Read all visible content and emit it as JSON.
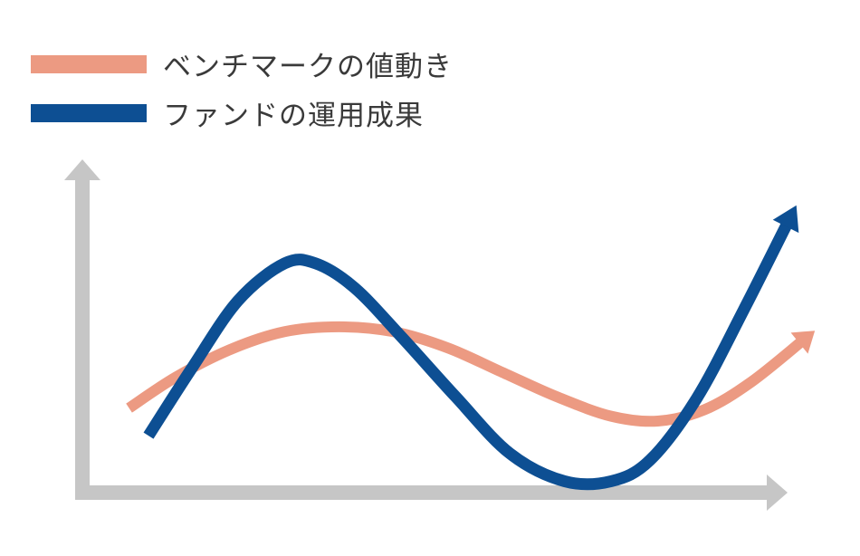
{
  "colors": {
    "axis": "#c6c6c6",
    "benchmark": "#ec9a82",
    "fund": "#0d4f93"
  },
  "chart_data": {
    "type": "line",
    "title": "",
    "xlabel": "",
    "ylabel": "",
    "grid": false,
    "legend_position": "top-left",
    "xlim": [
      0,
      10
    ],
    "ylim": [
      0,
      10
    ],
    "series": [
      {
        "name": "ベンチマークの値動き",
        "color": "#ec9a82",
        "x": [
          0.6,
          1.2,
          1.9,
          2.6,
          3.3,
          4.0,
          4.7,
          5.4,
          6.1,
          6.8,
          7.4,
          8.0,
          8.6,
          9.3
        ],
        "y": [
          2.6,
          3.55,
          4.4,
          4.95,
          5.1,
          4.95,
          4.45,
          3.7,
          2.95,
          2.35,
          2.2,
          2.55,
          3.4,
          4.75
        ],
        "arrow_end": true
      },
      {
        "name": "ファンドの運用成果",
        "color": "#0d4f93",
        "x": [
          0.85,
          1.4,
          2.0,
          2.6,
          3.0,
          3.5,
          4.1,
          4.8,
          5.5,
          6.2,
          6.8,
          7.3,
          7.9,
          8.5,
          9.1
        ],
        "y": [
          1.75,
          3.8,
          5.9,
          7.05,
          7.05,
          6.3,
          4.8,
          2.95,
          1.2,
          0.35,
          0.35,
          1.0,
          2.9,
          5.6,
          8.45
        ],
        "arrow_end": true
      }
    ]
  }
}
